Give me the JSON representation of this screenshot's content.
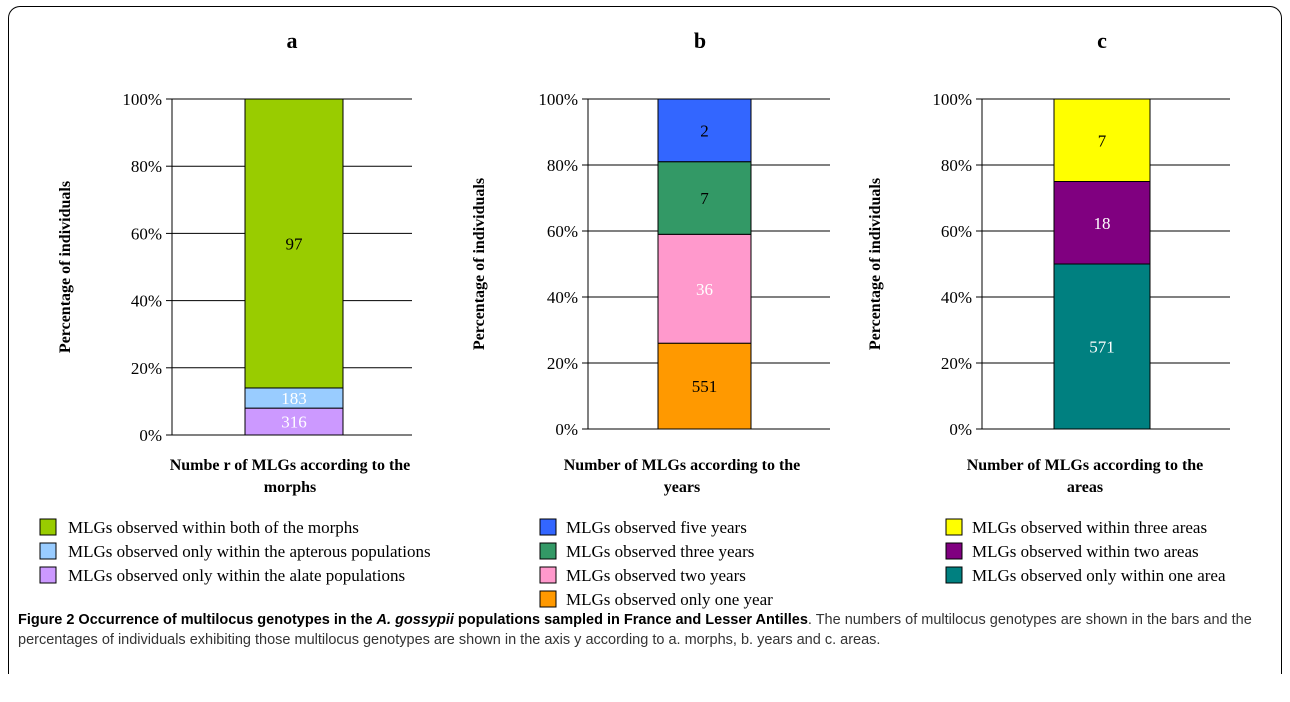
{
  "chart_data": [
    {
      "type": "bar",
      "stacked": true,
      "panel": "a",
      "xlabel_lines": [
        "Numbe r of MLGs according to the",
        "morphs"
      ],
      "ylabel": "Percentage of individuals",
      "ylim": [
        0,
        100
      ],
      "yticks": [
        "0%",
        "20%",
        "40%",
        "60%",
        "80%",
        "100%"
      ],
      "series": [
        {
          "name": "MLGs observed only within the alate populations",
          "value_pct": 8,
          "label": "316",
          "color": "#cc99ff"
        },
        {
          "name": "MLGs observed only within the apterous populations",
          "value_pct": 6,
          "label": "183",
          "color": "#99ccff"
        },
        {
          "name": "MLGs observed within both of the morphs",
          "value_pct": 86,
          "label": "97",
          "color": "#99cc00"
        }
      ]
    },
    {
      "type": "bar",
      "stacked": true,
      "panel": "b",
      "xlabel_lines": [
        "Number of MLGs according to the",
        "years"
      ],
      "ylabel": "Percentage of individuals",
      "ylim": [
        0,
        100
      ],
      "yticks": [
        "0%",
        "20%",
        "40%",
        "60%",
        "80%",
        "100%"
      ],
      "series": [
        {
          "name": "MLGs observed only one year",
          "value_pct": 26,
          "label": "551",
          "color": "#ff9900"
        },
        {
          "name": "MLGs observed two years",
          "value_pct": 33,
          "label": "36",
          "color": "#ff99cc"
        },
        {
          "name": "MLGs observed three years",
          "value_pct": 22,
          "label": "7",
          "color": "#339966"
        },
        {
          "name": "MLGs observed five years",
          "value_pct": 19,
          "label": "2",
          "color": "#3366ff"
        }
      ]
    },
    {
      "type": "bar",
      "stacked": true,
      "panel": "c",
      "xlabel_lines": [
        "Number of MLGs according to the",
        "areas"
      ],
      "ylabel": "Percentage of individuals",
      "ylim": [
        0,
        100
      ],
      "yticks": [
        "0%",
        "20%",
        "40%",
        "60%",
        "80%",
        "100%"
      ],
      "series": [
        {
          "name": "MLGs observed only within one area",
          "value_pct": 50,
          "label": "571",
          "color": "#008080"
        },
        {
          "name": "MLGs observed within two areas",
          "value_pct": 25,
          "label": "18",
          "color": "#800080"
        },
        {
          "name": "MLGs observed within three areas",
          "value_pct": 25,
          "label": "7",
          "color": "#ffff00"
        }
      ]
    }
  ],
  "caption": {
    "bold_prefix": "Figure 2 Occurrence of multilocus genotypes in the ",
    "bold_italic": "A. gossypii",
    "bold_suffix": " populations sampled in France and Lesser Antilles",
    "rest": ". The numbers of multilocus genotypes are shown in the bars and the percentages of individuals exhibiting those multilocus genotypes are shown in the axis y according to a. morphs, b. years and c. areas."
  }
}
